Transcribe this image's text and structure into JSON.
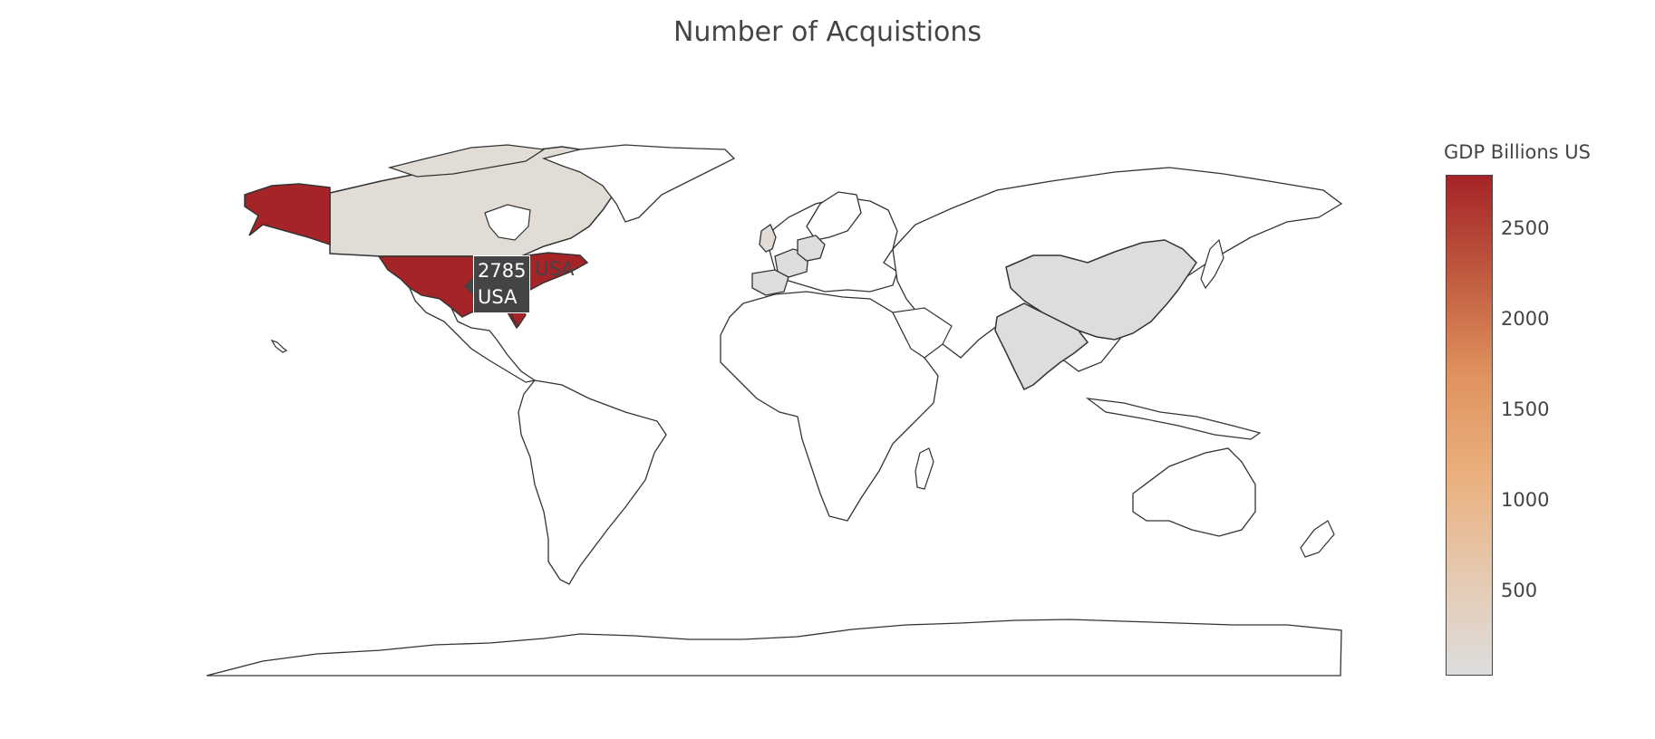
{
  "title": "Number of Acquistions",
  "colorbar": {
    "title": "GDP Billions US",
    "ticks": [
      "500",
      "1000",
      "1500",
      "2000",
      "2500"
    ],
    "scale": [
      "#dddddd",
      "#e9b98a",
      "#e6965a",
      "#c05a40",
      "#a52427"
    ],
    "min": 0,
    "max": 2785
  },
  "hover": {
    "value": "2785",
    "location": "USA",
    "trace_name": "USA"
  },
  "chart_data": {
    "type": "choropleth",
    "title": "Number of Acquistions",
    "colorbar_title": "GDP Billions US",
    "locations": [
      {
        "name": "USA",
        "value": 2785
      },
      {
        "name": "Canada",
        "value": 100
      },
      {
        "name": "United Kingdom",
        "value": 70
      },
      {
        "name": "Germany",
        "value": 20
      },
      {
        "name": "France",
        "value": 20
      },
      {
        "name": "Spain",
        "value": 10
      },
      {
        "name": "China",
        "value": 5
      },
      {
        "name": "India",
        "value": 5
      }
    ],
    "color_range": [
      0,
      2785
    ],
    "tick_values": [
      500,
      1000,
      1500,
      2000,
      2500
    ]
  }
}
